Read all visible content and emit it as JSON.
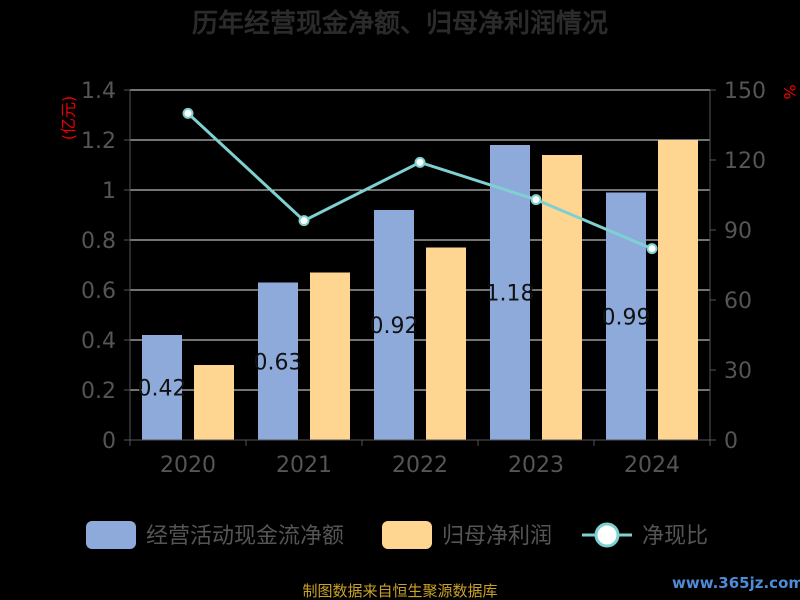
{
  "chart_data": {
    "type": "bar",
    "title": "历年经营现金净额、归母净利润情况",
    "categories": [
      "2020",
      "2021",
      "2022",
      "2023",
      "2024"
    ],
    "series": [
      {
        "name": "经营活动现金流净额",
        "type": "bar",
        "axis": "left",
        "color": "#8eaadb",
        "values": [
          0.42,
          0.63,
          0.92,
          1.18,
          0.99
        ],
        "labels": [
          "0.42",
          "0.63",
          "0.92",
          "1.18",
          "0.99"
        ]
      },
      {
        "name": "归母净利润",
        "type": "bar",
        "axis": "left",
        "color": "#ffd592",
        "values": [
          0.3,
          0.67,
          0.77,
          1.14,
          1.2
        ]
      },
      {
        "name": "净现比",
        "type": "line",
        "axis": "right",
        "color": "#7fd0d0",
        "values": [
          140,
          94,
          119,
          103,
          82
        ]
      }
    ],
    "yleft": {
      "unit": "(亿元)",
      "ylim": [
        0,
        1.4
      ],
      "ticks": [
        "0",
        "0.2",
        "0.4",
        "0.6",
        "0.8",
        "1",
        "1.2",
        "1.4"
      ]
    },
    "yright": {
      "unit": "%",
      "ylim": [
        0,
        150
      ],
      "ticks": [
        "0",
        "30",
        "60",
        "90",
        "120",
        "150"
      ]
    },
    "grid": true,
    "legend": "bottom"
  },
  "footer": "制图数据来自恒生聚源数据库",
  "watermark": "www.365jz.com"
}
